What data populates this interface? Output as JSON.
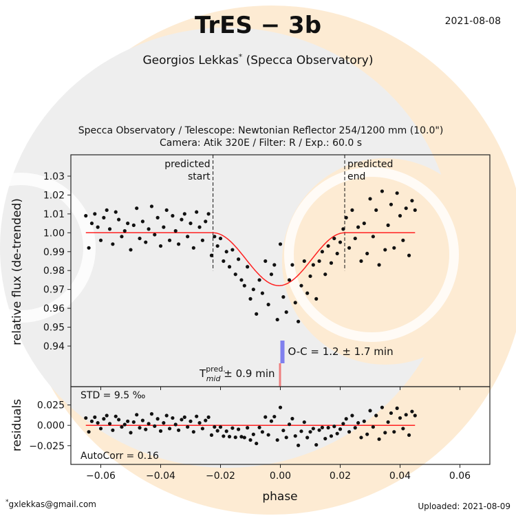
{
  "header": {
    "title": "TrES − 3b",
    "date": "2021-08-08",
    "observer": "Georgios Lekkas",
    "observer_mark": "*",
    "observatory": "(Specca Observatory)",
    "setup_line1": "Specca Observatory / Telescope: Newtonian Reflector 254/1200 mm (10.0\")",
    "setup_line2": "Camera: Atik 320E / Filter: R / Exp.: 60.0 s"
  },
  "footer": {
    "email": "gxlekkas@gmail.com",
    "email_mark": "*",
    "uploaded": "Uploaded: 2021-08-09"
  },
  "colors": {
    "model": "#ff2020",
    "oc_bar": "#8080ee",
    "tmid_bar": "#ee7f7f",
    "points": "#111111",
    "bg_peach": "#fdebd3",
    "bg_grey": "#eeeeee"
  },
  "chart_data": [
    {
      "type": "scatter",
      "ylabel": "relative flux (de-trended)",
      "xlim": [
        -0.07,
        0.07
      ],
      "ylim": [
        0.9185,
        1.0413
      ],
      "yticks": [
        "1.03",
        "1.02",
        "1.01",
        "1.00",
        "0.99",
        "0.98",
        "0.97",
        "0.96",
        "0.95",
        "0.94"
      ],
      "ytick_values": [
        1.03,
        1.02,
        1.01,
        1.0,
        0.99,
        0.98,
        0.97,
        0.96,
        0.95,
        0.94
      ],
      "annotations": {
        "predicted_start": {
          "label1": "predicted",
          "label2": "start",
          "phase": -0.0225
        },
        "predicted_end": {
          "label1": "predicted",
          "label2": "end",
          "phase": 0.0215
        },
        "oc": "O-C = 1.2 ± 1.7 min",
        "tmid_T": "T",
        "tmid_sup": "pred.",
        "tmid_sub": "mid",
        "tmid_err": "± 0.9 min"
      },
      "model": {
        "name": "",
        "baseline": 1.0,
        "depth": 0.028,
        "center": -0.0005,
        "start": -0.0225,
        "end": 0.0215
      },
      "points": {
        "x_start": -0.065,
        "x_step": 0.001,
        "flux": [
          1.009,
          0.992,
          1.005,
          1.01,
          1.003,
          0.996,
          1.008,
          1.012,
          1.002,
          0.994,
          1.011,
          1.007,
          0.998,
          1.001,
          1.005,
          0.991,
          1.004,
          1.013,
          0.997,
          1.006,
          0.995,
          1.002,
          1.014,
          0.999,
          1.008,
          0.993,
          1.003,
          1.012,
          0.996,
          1.009,
          1.001,
          0.994,
          1.007,
          1.01,
          0.998,
          1.005,
          0.992,
          1.011,
          1.003,
          0.996,
          1.006,
          1.01,
          0.988,
          0.998,
          0.993,
          0.997,
          0.985,
          0.99,
          0.982,
          0.991,
          0.978,
          0.986,
          0.975,
          0.972,
          0.982,
          0.965,
          0.97,
          0.957,
          0.975,
          0.968,
          0.985,
          0.962,
          0.978,
          0.983,
          0.954,
          0.994,
          0.966,
          0.958,
          0.975,
          0.983,
          0.963,
          0.953,
          0.972,
          0.985,
          0.968,
          0.977,
          0.983,
          0.965,
          0.985,
          0.99,
          0.978,
          0.993,
          0.984,
          0.997,
          0.989,
          0.995,
          1.002,
          1.008,
          0.992,
          1.012,
          0.997,
          1.003,
          0.985,
          1.005,
          0.989,
          1.018,
          0.998,
          1.012,
          0.983,
          1.022,
          0.991,
          1.004,
          1.015,
          0.992,
          1.021,
          1.009,
          0.996,
          1.013,
          0.988,
          1.017,
          1.012
        ]
      }
    },
    {
      "type": "scatter",
      "ylabel": "residuals",
      "xlabel": "phase",
      "xlim": [
        -0.07,
        0.07
      ],
      "ylim": [
        -0.048,
        0.0475
      ],
      "xticks": [
        "−0.06",
        "−0.04",
        "−0.02",
        "0.00",
        "0.02",
        "0.04",
        "0.06"
      ],
      "xtick_values": [
        -0.06,
        -0.04,
        -0.02,
        0,
        0.02,
        0.04,
        0.06
      ],
      "yticks": [
        "0.025",
        "0.000",
        "−0.025"
      ],
      "ytick_values": [
        0.025,
        0,
        -0.025
      ],
      "std_label": "STD = 9.5 ‰",
      "autocorr_label": "AutoCorr = 0.16"
    }
  ]
}
